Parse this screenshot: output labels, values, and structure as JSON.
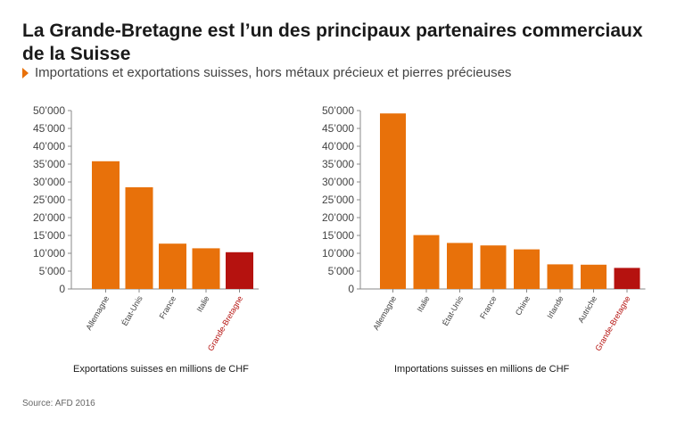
{
  "title": "La Grande-Bretagne est l’un des principaux partenaires commerciaux de la Suisse",
  "subtitle": "Importations et exportations suisses, hors métaux précieux et pierres précieuses",
  "source": "Source: AFD 2016",
  "colors": {
    "bar": "#e8710a",
    "highlight": "#b5120f",
    "axis": "#888888",
    "tick_text": "#444444"
  },
  "chart_data": [
    {
      "type": "bar",
      "title": "",
      "xlabel": "Exportations suisses en millions de CHF",
      "ylabel": "",
      "ylim": [
        0,
        50000
      ],
      "yticks": [
        "0",
        "5’000",
        "10’000",
        "15’000",
        "20’000",
        "25’000",
        "30’000",
        "35’000",
        "40’000",
        "45’000",
        "50’000"
      ],
      "categories": [
        "Allemagne",
        "État-Unis",
        "France",
        "Italie",
        "Grande-Bretagne"
      ],
      "values": [
        35800,
        28500,
        12700,
        11400,
        10300
      ],
      "highlight": "Grande-Bretagne",
      "grid": false
    },
    {
      "type": "bar",
      "title": "",
      "xlabel": "Importations suisses en millions de CHF",
      "ylabel": "",
      "ylim": [
        0,
        50000
      ],
      "yticks": [
        "0",
        "5’000",
        "10’000",
        "15’000",
        "20’000",
        "25’000",
        "30’000",
        "35’000",
        "40’000",
        "45’000",
        "50’000"
      ],
      "categories": [
        "Allemagne",
        "Italie",
        "État-Unis",
        "France",
        "Chine",
        "Irlande",
        "Autriche",
        "Grande-Bretagne"
      ],
      "values": [
        49200,
        15100,
        12900,
        12200,
        11100,
        6900,
        6800,
        5900
      ],
      "highlight": "Grande-Bretagne",
      "grid": false
    }
  ]
}
